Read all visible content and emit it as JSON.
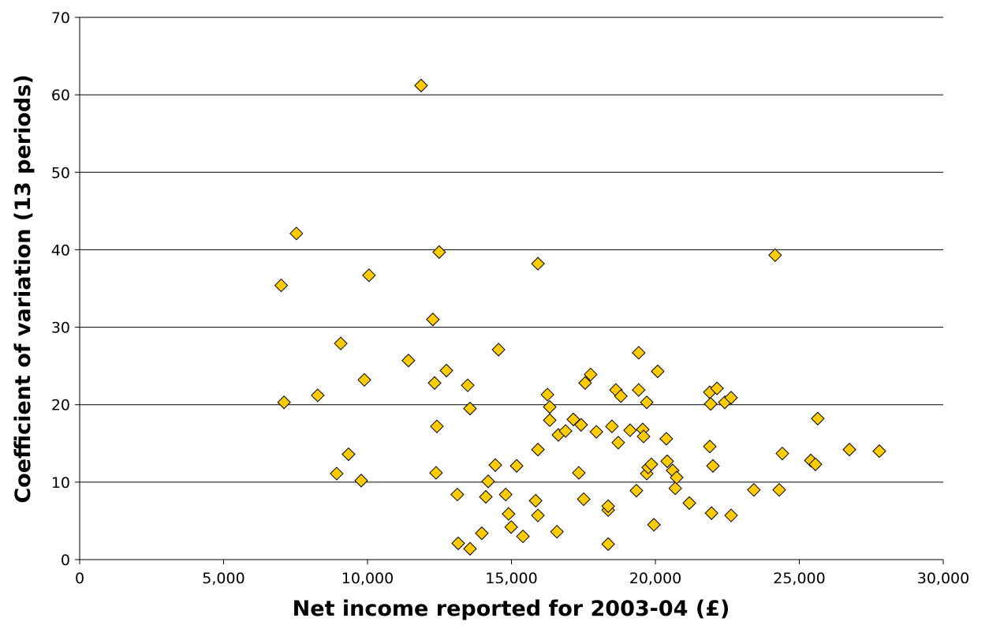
{
  "chart_data": {
    "type": "scatter",
    "x_label": "Net income reported for 2003-04 (£)",
    "y_label": "Coefficient of variation (13 periods)",
    "color": "#ffcc00",
    "grid": true,
    "xlim": [
      0,
      30000
    ],
    "ylim": [
      0,
      70
    ],
    "xticks": [
      0,
      {
        "value": 5000,
        "label": "5,000"
      },
      {
        "value": 10000,
        "label": "10,000"
      },
      {
        "value": 15000,
        "label": "15,000"
      },
      {
        "value": 20000,
        "label": "20,000"
      },
      {
        "value": 25000,
        "label": "25,000"
      },
      {
        "value": 30000,
        "label": "30,000"
      }
    ],
    "yticks": [
      0,
      10,
      20,
      30,
      40,
      50,
      60,
      70
    ],
    "x": [
      7000,
      7100,
      7530,
      8270,
      8930,
      9070,
      9340,
      9780,
      9890,
      10050,
      11420,
      11860,
      12270,
      12330,
      12380,
      12410,
      12490,
      12740,
      13120,
      13150,
      13480,
      13560,
      13560,
      13970,
      14110,
      14190,
      14440,
      14550,
      14800,
      14900,
      14990,
      15180,
      15400,
      15840,
      15920,
      15920,
      15920,
      16250,
      16330,
      16330,
      16580,
      16630,
      16880,
      17150,
      17340,
      17420,
      17510,
      17560,
      17750,
      17950,
      18360,
      18360,
      18360,
      18490,
      18630,
      18710,
      18800,
      19120,
      19340,
      19420,
      19420,
      19560,
      19590,
      19700,
      19700,
      19750,
      19860,
      19950,
      20080,
      20380,
      20410,
      20600,
      20690,
      20740,
      21180,
      21890,
      21890,
      21920,
      21950,
      22000,
      22140,
      22410,
      22630,
      22630,
      23420,
      24160,
      24300,
      24410,
      25400,
      25560,
      25640,
      26740,
      27780
    ],
    "values": [
      35.4,
      20.3,
      42.1,
      21.2,
      11.1,
      27.9,
      13.6,
      10.2,
      23.2,
      36.7,
      25.7,
      61.2,
      31.0,
      22.8,
      11.2,
      17.2,
      39.7,
      24.4,
      8.4,
      2.1,
      22.5,
      19.5,
      1.4,
      3.4,
      8.1,
      10.1,
      12.2,
      27.1,
      8.4,
      5.9,
      4.2,
      12.1,
      3.0,
      7.6,
      38.2,
      14.2,
      5.7,
      21.3,
      19.7,
      18.0,
      3.6,
      16.1,
      16.6,
      18.1,
      11.2,
      17.4,
      7.8,
      22.8,
      23.9,
      16.5,
      2.0,
      6.4,
      6.9,
      17.2,
      21.9,
      15.1,
      21.1,
      16.7,
      8.9,
      26.7,
      21.9,
      16.8,
      15.9,
      20.3,
      11.1,
      11.9,
      12.3,
      4.5,
      24.3,
      15.6,
      12.7,
      11.5,
      9.2,
      10.6,
      7.3,
      14.6,
      21.6,
      20.1,
      6.0,
      12.1,
      22.1,
      20.3,
      20.9,
      5.7,
      9.0,
      39.3,
      9.0,
      13.7,
      12.8,
      12.3,
      18.2,
      14.2,
      14.0
    ]
  }
}
